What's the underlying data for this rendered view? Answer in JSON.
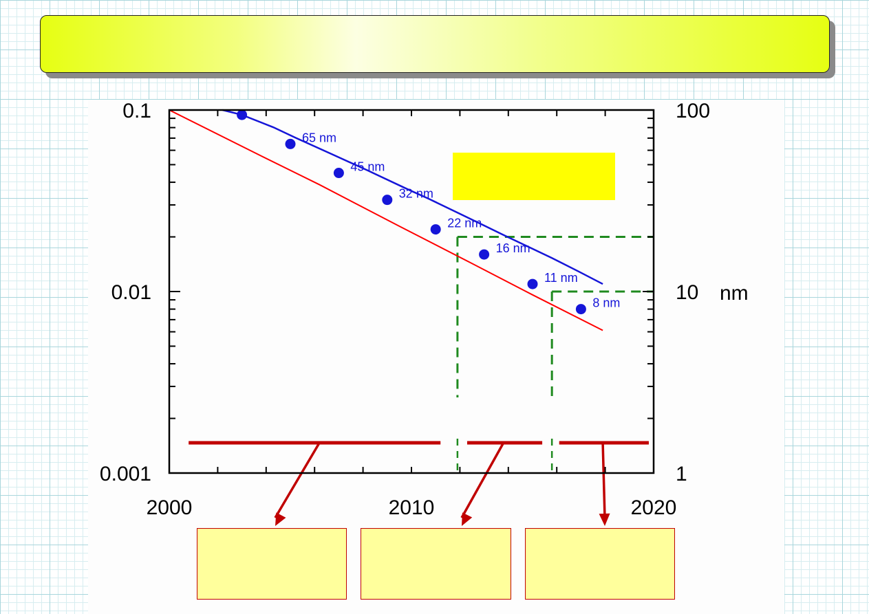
{
  "title": "",
  "legend_box_text": "",
  "boxes": [
    "",
    "",
    ""
  ],
  "colors": {
    "scaling_line": "#1515d8",
    "red_line": "#ff0000",
    "guides": "#1f8a1f",
    "brackets": "#c00000",
    "highlight": "#ffff00"
  },
  "chart_data": {
    "type": "line",
    "title": "",
    "x_ticks": [
      "2000",
      "2010",
      "2020"
    ],
    "xlim": [
      2000,
      2020
    ],
    "y_left": {
      "scale": "log",
      "lim": [
        0.001,
        0.1
      ],
      "ticks": [
        "0.001",
        "0.01",
        "0.1"
      ],
      "label": ""
    },
    "y_right": {
      "scale": "log",
      "lim": [
        1,
        100
      ],
      "ticks": [
        "1",
        "10",
        "100"
      ],
      "unit": "nm"
    },
    "series": [
      {
        "axis": "right",
        "x": [
          2002.2,
          2003,
          2004.3,
          2005.2,
          2006.7,
          2008.2,
          2009.9,
          2010.7,
          2011.9,
          2013,
          2013.8,
          2015.8,
          2016.9,
          2017.9
        ],
        "y": [
          100,
          94,
          80.3,
          70.5,
          57.2,
          46.4,
          36.3,
          32.5,
          27.2,
          23.1,
          20.5,
          15.3,
          12.9,
          11.0
        ],
        "points": [
          {
            "x": 2003.0,
            "y": 94
          },
          {
            "x": 2005.0,
            "y": 65,
            "label": "65 nm"
          },
          {
            "x": 2007.0,
            "y": 45,
            "label": "45 nm"
          },
          {
            "x": 2009.0,
            "y": 32,
            "label": "32 nm"
          },
          {
            "x": 2011.0,
            "y": 22,
            "label": "22 nm"
          },
          {
            "x": 2013.0,
            "y": 16,
            "label": "16 nm"
          },
          {
            "x": 2015.0,
            "y": 11,
            "label": "11 nm"
          },
          {
            "x": 2017.0,
            "y": 8,
            "label": "8 nm"
          }
        ]
      },
      {
        "axis": "left",
        "x": [
          2000,
          2003.8,
          2006.2,
          2009.5,
          2012.4,
          2015.0,
          2017.9
        ],
        "y": [
          0.1,
          0.0558,
          0.0388,
          0.0229,
          0.0145,
          0.00959,
          0.00611
        ]
      }
    ],
    "guides": {
      "vertical_x": [
        2011.9,
        2015.8
      ],
      "horizontal_y_nm": [
        20,
        10
      ]
    },
    "brackets": {
      "segments": [
        [
          2000.8,
          2011.2
        ],
        [
          2012.3,
          2015.4
        ],
        [
          2016.1,
          2019.8
        ]
      ],
      "arrows_from": [
        2006.2,
        2013.8,
        2017.9
      ]
    }
  }
}
